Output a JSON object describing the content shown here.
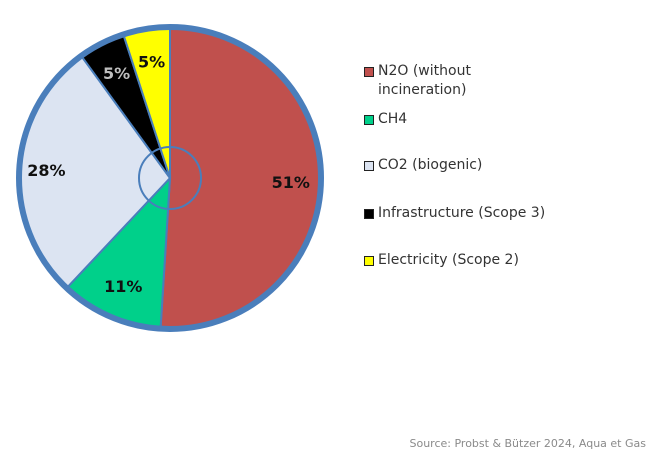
{
  "chart_data": {
    "type": "pie",
    "categories": [
      "N2O (without incineration)",
      "CH4",
      "CO2 (biogenic)",
      "Infrastructure (Scope 3)",
      "Electricity (Scope 2)"
    ],
    "values": [
      51,
      11,
      28,
      5,
      5
    ],
    "value_labels": [
      "51%",
      "11%",
      "28%",
      "5%",
      "5%"
    ],
    "colors": [
      "#C0504D",
      "#00D08A",
      "#DCE4F2",
      "#000000",
      "#FFFF00"
    ],
    "label_colors": [
      "#111111",
      "#111111",
      "#111111",
      "#bfbfbf",
      "#111111"
    ],
    "border_color": "#4A7EBB",
    "legend_position": "right",
    "title": ""
  },
  "source": "Source: Probst & Bützer 2024, Aqua et Gas"
}
